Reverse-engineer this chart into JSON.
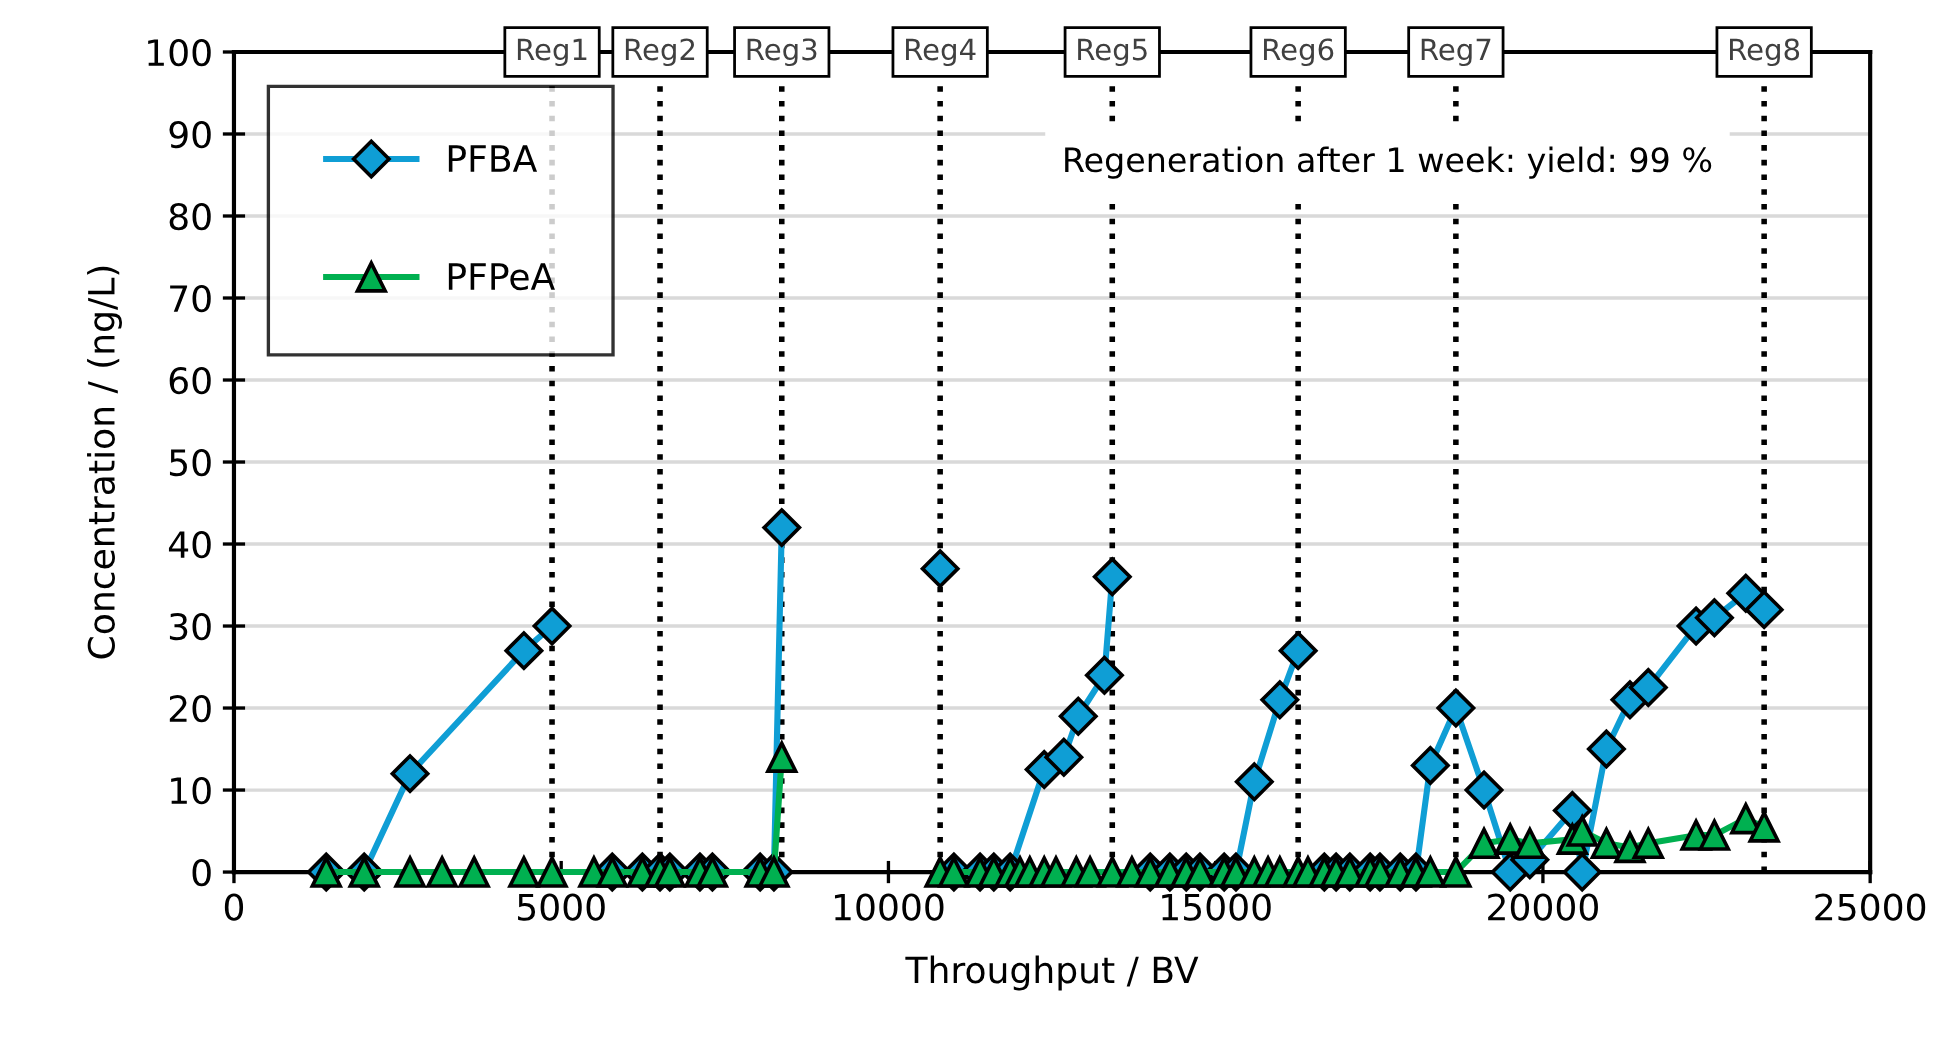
{
  "chart_data": {
    "type": "line",
    "xlabel": "Throughput / BV",
    "ylabel": "Concentration / (ng/L)",
    "xlim": [
      0,
      25000
    ],
    "xticks": [
      0,
      5000,
      10000,
      15000,
      20000,
      25000
    ],
    "ylim": [
      0,
      100
    ],
    "yticks": [
      0,
      10,
      20,
      30,
      40,
      50,
      60,
      70,
      80,
      90,
      100
    ],
    "grid": "y",
    "legend": "top left",
    "series": [
      {
        "name": "PFBA",
        "color": "#0f9ed5",
        "marker": "diamond",
        "x": [
          1410,
          1990,
          2690,
          4430,
          4860,
          5500,
          5780,
          6240,
          6510,
          6660,
          7120,
          7310,
          8040,
          8250,
          8370,
          9500,
          10790,
          10900,
          11000,
          11400,
          11610,
          11860,
          12380,
          12680,
          12900,
          13300,
          13420,
          13720,
          14000,
          14300,
          14550,
          14760,
          15130,
          15310,
          15590,
          15980,
          16260,
          16410,
          16660,
          16840,
          17050,
          17360,
          17510,
          17820,
          18060,
          18280,
          18670,
          19100,
          19500,
          19800,
          20450,
          20600,
          20970,
          21330,
          21610,
          22340,
          22620,
          23100,
          23380
        ],
        "values": [
          0,
          0,
          12,
          27,
          30,
          null,
          0,
          0,
          0,
          0,
          0,
          0,
          0,
          0,
          42,
          null,
          37,
          null,
          0,
          0,
          0,
          0,
          12.5,
          14,
          19,
          24,
          36,
          null,
          0,
          0,
          0,
          0,
          0,
          0,
          11,
          21,
          27,
          null,
          0,
          0,
          0,
          0,
          0,
          0,
          0,
          13,
          20,
          10,
          0,
          1.5,
          7.5,
          0,
          15,
          21,
          22.5,
          30,
          31,
          34,
          32
        ]
      },
      {
        "name": "PFPeA",
        "color": "#00b050",
        "marker": "triangle",
        "x": [
          1410,
          1990,
          2690,
          3180,
          3670,
          4430,
          4860,
          5500,
          5780,
          6240,
          6510,
          6660,
          7120,
          7310,
          8040,
          8250,
          8370,
          9500,
          10790,
          11000,
          11400,
          11610,
          11860,
          12010,
          12160,
          12380,
          12560,
          12870,
          13080,
          13420,
          13720,
          14000,
          14300,
          14550,
          14760,
          15130,
          15310,
          15590,
          15800,
          15980,
          16260,
          16410,
          16660,
          16840,
          17050,
          17360,
          17510,
          17820,
          18060,
          18280,
          18670,
          19100,
          19500,
          19800,
          20450,
          20600,
          20970,
          21330,
          21610,
          22340,
          22620,
          23100,
          23380
        ],
        "values": [
          0,
          0,
          0,
          0,
          0,
          0,
          0,
          0,
          0,
          0,
          0,
          0,
          0,
          0,
          0,
          0,
          14,
          null,
          0,
          0,
          0,
          0,
          0,
          0,
          0,
          0,
          0,
          0,
          0,
          0,
          0,
          0,
          0,
          0,
          0,
          0,
          0,
          0,
          0,
          0,
          0,
          0,
          0,
          0,
          0,
          0,
          0,
          0,
          0,
          0,
          0,
          3.5,
          4,
          3.5,
          4,
          5,
          3.5,
          3,
          3.5,
          4.5,
          4.5,
          6.5,
          5.5
        ]
      }
    ],
    "ref_lines": [
      {
        "axis": "x",
        "value": 4860,
        "label": "Reg1",
        "color": "#000000",
        "line_style": "dotted"
      },
      {
        "axis": "x",
        "value": 6510,
        "label": "Reg2",
        "color": "#000000",
        "line_style": "dotted"
      },
      {
        "axis": "x",
        "value": 8370,
        "label": "Reg3",
        "color": "#000000",
        "line_style": "dotted"
      },
      {
        "axis": "x",
        "value": 10790,
        "label": "Reg4",
        "color": "#000000",
        "line_style": "dotted"
      },
      {
        "axis": "x",
        "value": 13420,
        "label": "Reg5",
        "color": "#000000",
        "line_style": "dotted"
      },
      {
        "axis": "x",
        "value": 16260,
        "label": "Reg6",
        "color": "#000000",
        "line_style": "dotted"
      },
      {
        "axis": "x",
        "value": 18670,
        "label": "Reg7",
        "color": "#000000",
        "line_style": "dotted"
      },
      {
        "axis": "x",
        "value": 23380,
        "label": "Reg8",
        "color": "#000000",
        "line_style": "dotted"
      }
    ],
    "annotations": [
      "Regeneration after 1 week: yield: 99 %"
    ]
  }
}
